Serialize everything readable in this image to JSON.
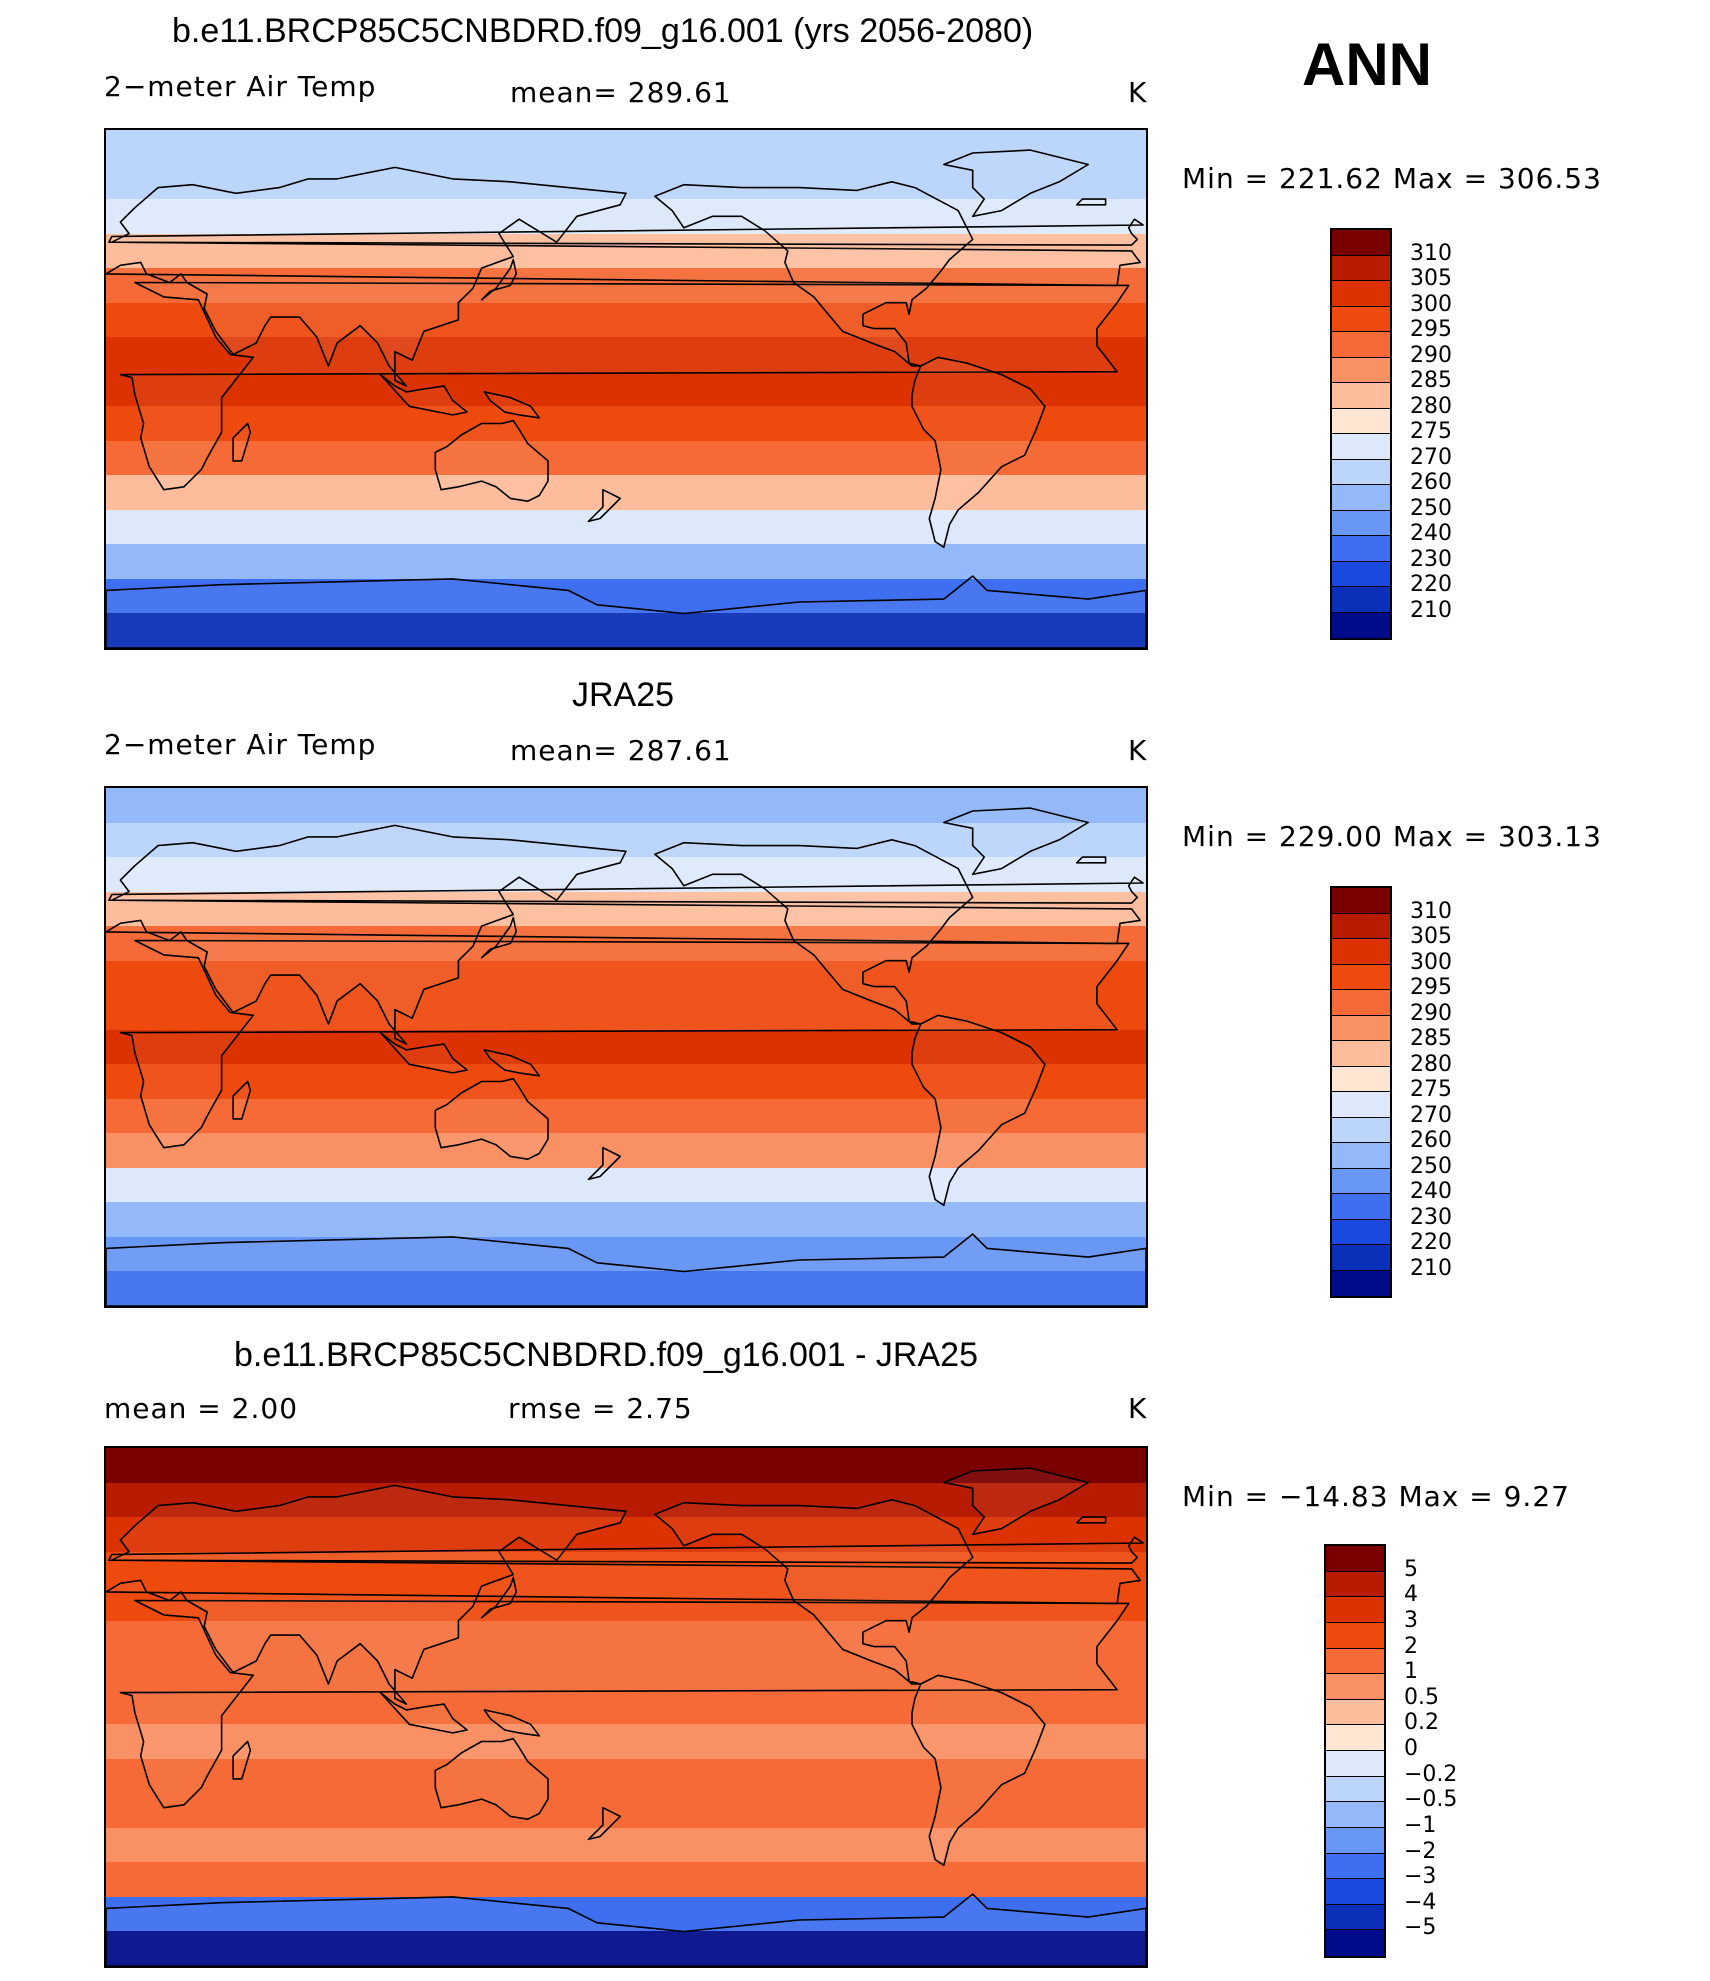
{
  "panels": [
    {
      "id": "model",
      "title": "b.e11.BRCP85C5CNBDRD.f09_g16.001 (yrs 2056-2080)",
      "left_label": "2−meter Air Temp",
      "mid_label": "mean=  289.61",
      "unit": "K",
      "minmax": "Min  =  221.62  Max  =  306.53",
      "colorbar": {
        "labels": [
          "310",
          "305",
          "300",
          "295",
          "290",
          "285",
          "280",
          "275",
          "270",
          "260",
          "250",
          "240",
          "230",
          "220",
          "210"
        ],
        "colors": [
          "#7a0000",
          "#b81c00",
          "#dc3200",
          "#ee4a0e",
          "#f56a36",
          "#fa9165",
          "#fdbd9c",
          "#fee6d2",
          "#dde9fb",
          "#bcd5fb",
          "#93b9fa",
          "#6997f5",
          "#3d6ff0",
          "#1a49e0",
          "#0a2fb8",
          "#000b8a"
        ]
      },
      "bands": [
        "#0a2fb8",
        "#3d6ff0",
        "#93b9fa",
        "#dde9fb",
        "#fdbd9c",
        "#f56a36",
        "#ee4a0e",
        "#dc3200",
        "#dc3200",
        "#ee4a0e",
        "#f56a36",
        "#fdbd9c",
        "#dde9fb",
        "#bcd5fb",
        "#bcd5fb"
      ]
    },
    {
      "id": "obs",
      "title": "JRA25",
      "left_label": "2−meter Air Temp",
      "mid_label": "mean=  287.61",
      "unit": "K",
      "minmax": "Min  =  229.00  Max  =  303.13",
      "colorbar": {
        "labels": [
          "310",
          "305",
          "300",
          "295",
          "290",
          "285",
          "280",
          "275",
          "270",
          "260",
          "250",
          "240",
          "230",
          "220",
          "210"
        ],
        "colors": [
          "#7a0000",
          "#b81c00",
          "#dc3200",
          "#ee4a0e",
          "#f56a36",
          "#fa9165",
          "#fdbd9c",
          "#fee6d2",
          "#dde9fb",
          "#bcd5fb",
          "#93b9fa",
          "#6997f5",
          "#3d6ff0",
          "#1a49e0",
          "#0a2fb8",
          "#000b8a"
        ]
      },
      "bands": [
        "#3d6ff0",
        "#6997f5",
        "#93b9fa",
        "#dde9fb",
        "#fa9165",
        "#f56a36",
        "#ee4a0e",
        "#dc3200",
        "#ee4a0e",
        "#ee4a0e",
        "#f56a36",
        "#fdbd9c",
        "#dde9fb",
        "#bcd5fb",
        "#93b9fa"
      ]
    },
    {
      "id": "diff",
      "title": "b.e11.BRCP85C5CNBDRD.f09_g16.001 - JRA25",
      "left_label": "mean  =      2.00",
      "mid_label": "rmse  =      2.75",
      "unit": "K",
      "minmax": "Min  =  −14.83  Max  =      9.27",
      "colorbar": {
        "labels": [
          "5",
          "4",
          "3",
          "2",
          "1",
          "0.5",
          "0.2",
          "0",
          "−0.2",
          "−0.5",
          "−1",
          "−2",
          "−3",
          "−4",
          "−5"
        ],
        "colors": [
          "#7a0000",
          "#b81c00",
          "#dc3200",
          "#ee4a0e",
          "#f56a36",
          "#fa9165",
          "#fdbd9c",
          "#fee6d2",
          "#dde9fb",
          "#bcd5fb",
          "#93b9fa",
          "#6997f5",
          "#3d6ff0",
          "#1a49e0",
          "#0a2fb8",
          "#000b8a"
        ]
      },
      "bands": [
        "#000b8a",
        "#3d6ff0",
        "#f56a36",
        "#fa9165",
        "#f56a36",
        "#f56a36",
        "#fa9165",
        "#f56a36",
        "#f56a36",
        "#f56a36",
        "#ee4a0e",
        "#ee4a0e",
        "#dc3200",
        "#b81c00",
        "#7a0000"
      ]
    }
  ],
  "season": "ANN",
  "map_colors": {
    "coast": "#000000"
  }
}
